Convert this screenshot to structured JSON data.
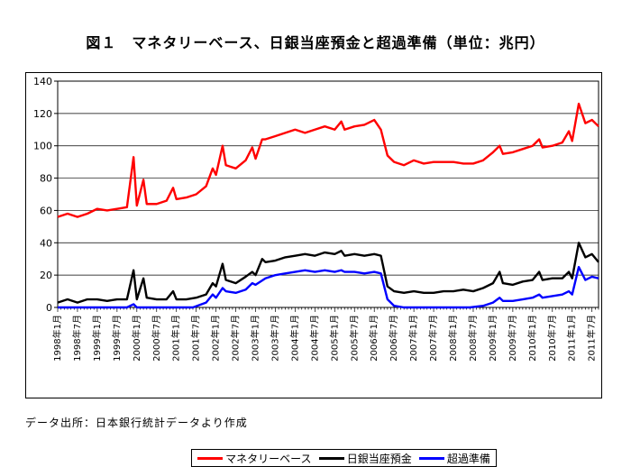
{
  "chart_data": {
    "type": "line",
    "title": "図１　マネタリーベース、日銀当座預金と超過準備（単位：兆円）",
    "ylim": [
      0,
      140
    ],
    "yticks": [
      0,
      20,
      40,
      60,
      80,
      100,
      120,
      140
    ],
    "xlim": [
      "1998-01",
      "2011-09"
    ],
    "xtick_labels": [
      "1998年1月",
      "1998年7月",
      "1999年1月",
      "1999年7月",
      "2000年1月",
      "2000年7月",
      "2001年1月",
      "2001年7月",
      "2002年1月",
      "2002年7月",
      "2003年1月",
      "2003年7月",
      "2004年1月",
      "2004年7月",
      "2005年1月",
      "2005年7月",
      "2006年1月",
      "2006年7月",
      "2007年1月",
      "2007年7月",
      "2008年1月",
      "2008年7月",
      "2009年1月",
      "2009年7月",
      "2010年1月",
      "2010年7月",
      "2011年1月",
      "2011年7月"
    ],
    "grid": "horizontal",
    "legend_position": "bottom",
    "series": [
      {
        "name": "マネタリーベース",
        "color": "#ff0000",
        "points": [
          [
            "1998-01",
            56
          ],
          [
            "1998-04",
            58
          ],
          [
            "1998-07",
            56
          ],
          [
            "1998-10",
            58
          ],
          [
            "1999-01",
            61
          ],
          [
            "1999-04",
            60
          ],
          [
            "1999-07",
            61
          ],
          [
            "1999-10",
            62
          ],
          [
            "1999-12",
            93
          ],
          [
            "2000-01",
            63
          ],
          [
            "2000-03",
            79
          ],
          [
            "2000-04",
            64
          ],
          [
            "2000-07",
            64
          ],
          [
            "2000-10",
            66
          ],
          [
            "2000-12",
            74
          ],
          [
            "2001-01",
            67
          ],
          [
            "2001-04",
            68
          ],
          [
            "2001-07",
            70
          ],
          [
            "2001-10",
            75
          ],
          [
            "2001-12",
            86
          ],
          [
            "2002-01",
            82
          ],
          [
            "2002-03",
            100
          ],
          [
            "2002-04",
            88
          ],
          [
            "2002-07",
            86
          ],
          [
            "2002-10",
            91
          ],
          [
            "2002-12",
            99
          ],
          [
            "2003-01",
            92
          ],
          [
            "2003-03",
            104
          ],
          [
            "2003-04",
            104
          ],
          [
            "2003-07",
            106
          ],
          [
            "2003-10",
            108
          ],
          [
            "2004-01",
            110
          ],
          [
            "2004-04",
            108
          ],
          [
            "2004-07",
            110
          ],
          [
            "2004-10",
            112
          ],
          [
            "2005-01",
            110
          ],
          [
            "2005-03",
            115
          ],
          [
            "2005-04",
            110
          ],
          [
            "2005-07",
            112
          ],
          [
            "2005-10",
            113
          ],
          [
            "2006-01",
            116
          ],
          [
            "2006-03",
            110
          ],
          [
            "2006-05",
            94
          ],
          [
            "2006-07",
            90
          ],
          [
            "2006-10",
            88
          ],
          [
            "2007-01",
            91
          ],
          [
            "2007-04",
            89
          ],
          [
            "2007-07",
            90
          ],
          [
            "2007-10",
            90
          ],
          [
            "2008-01",
            90
          ],
          [
            "2008-04",
            89
          ],
          [
            "2008-07",
            89
          ],
          [
            "2008-10",
            91
          ],
          [
            "2009-01",
            96
          ],
          [
            "2009-03",
            100
          ],
          [
            "2009-04",
            95
          ],
          [
            "2009-07",
            96
          ],
          [
            "2009-10",
            98
          ],
          [
            "2010-01",
            100
          ],
          [
            "2010-03",
            104
          ],
          [
            "2010-04",
            99
          ],
          [
            "2010-07",
            100
          ],
          [
            "2010-10",
            102
          ],
          [
            "2010-12",
            109
          ],
          [
            "2011-01",
            103
          ],
          [
            "2011-03",
            126
          ],
          [
            "2011-05",
            114
          ],
          [
            "2011-07",
            116
          ],
          [
            "2011-09",
            112
          ]
        ]
      },
      {
        "name": "日銀当座預金",
        "color": "#000000",
        "points": [
          [
            "1998-01",
            3
          ],
          [
            "1998-04",
            5
          ],
          [
            "1998-07",
            3
          ],
          [
            "1998-10",
            5
          ],
          [
            "1999-01",
            5
          ],
          [
            "1999-04",
            4
          ],
          [
            "1999-07",
            5
          ],
          [
            "1999-10",
            5
          ],
          [
            "1999-12",
            23
          ],
          [
            "2000-01",
            5
          ],
          [
            "2000-03",
            18
          ],
          [
            "2000-04",
            6
          ],
          [
            "2000-07",
            5
          ],
          [
            "2000-10",
            5
          ],
          [
            "2000-12",
            10
          ],
          [
            "2001-01",
            5
          ],
          [
            "2001-04",
            5
          ],
          [
            "2001-07",
            6
          ],
          [
            "2001-10",
            8
          ],
          [
            "2001-12",
            15
          ],
          [
            "2002-01",
            13
          ],
          [
            "2002-03",
            27
          ],
          [
            "2002-04",
            17
          ],
          [
            "2002-07",
            15
          ],
          [
            "2002-10",
            19
          ],
          [
            "2002-12",
            22
          ],
          [
            "2003-01",
            20
          ],
          [
            "2003-03",
            30
          ],
          [
            "2003-04",
            28
          ],
          [
            "2003-07",
            29
          ],
          [
            "2003-10",
            31
          ],
          [
            "2004-01",
            32
          ],
          [
            "2004-04",
            33
          ],
          [
            "2004-07",
            32
          ],
          [
            "2004-10",
            34
          ],
          [
            "2005-01",
            33
          ],
          [
            "2005-03",
            35
          ],
          [
            "2005-04",
            32
          ],
          [
            "2005-07",
            33
          ],
          [
            "2005-10",
            32
          ],
          [
            "2006-01",
            33
          ],
          [
            "2006-03",
            32
          ],
          [
            "2006-05",
            13
          ],
          [
            "2006-07",
            10
          ],
          [
            "2006-10",
            9
          ],
          [
            "2007-01",
            10
          ],
          [
            "2007-04",
            9
          ],
          [
            "2007-07",
            9
          ],
          [
            "2007-10",
            10
          ],
          [
            "2008-01",
            10
          ],
          [
            "2008-04",
            11
          ],
          [
            "2008-07",
            10
          ],
          [
            "2008-10",
            12
          ],
          [
            "2009-01",
            15
          ],
          [
            "2009-03",
            22
          ],
          [
            "2009-04",
            15
          ],
          [
            "2009-07",
            14
          ],
          [
            "2009-10",
            16
          ],
          [
            "2010-01",
            17
          ],
          [
            "2010-03",
            22
          ],
          [
            "2010-04",
            17
          ],
          [
            "2010-07",
            18
          ],
          [
            "2010-10",
            18
          ],
          [
            "2010-12",
            22
          ],
          [
            "2011-01",
            18
          ],
          [
            "2011-03",
            40
          ],
          [
            "2011-05",
            31
          ],
          [
            "2011-07",
            33
          ],
          [
            "2011-09",
            28
          ]
        ]
      },
      {
        "name": "超過準備",
        "color": "#0000ff",
        "points": [
          [
            "1998-01",
            0
          ],
          [
            "1999-10",
            0
          ],
          [
            "1999-12",
            2
          ],
          [
            "2000-01",
            0
          ],
          [
            "2001-06",
            0
          ],
          [
            "2001-10",
            3
          ],
          [
            "2001-12",
            8
          ],
          [
            "2002-01",
            6
          ],
          [
            "2002-03",
            12
          ],
          [
            "2002-04",
            10
          ],
          [
            "2002-07",
            9
          ],
          [
            "2002-10",
            11
          ],
          [
            "2002-12",
            15
          ],
          [
            "2003-01",
            14
          ],
          [
            "2003-04",
            18
          ],
          [
            "2003-07",
            20
          ],
          [
            "2003-10",
            21
          ],
          [
            "2004-01",
            22
          ],
          [
            "2004-04",
            23
          ],
          [
            "2004-07",
            22
          ],
          [
            "2004-10",
            23
          ],
          [
            "2005-01",
            22
          ],
          [
            "2005-03",
            23
          ],
          [
            "2005-04",
            22
          ],
          [
            "2005-07",
            22
          ],
          [
            "2005-10",
            21
          ],
          [
            "2006-01",
            22
          ],
          [
            "2006-03",
            21
          ],
          [
            "2006-05",
            5
          ],
          [
            "2006-07",
            1
          ],
          [
            "2006-10",
            0
          ],
          [
            "2008-06",
            0
          ],
          [
            "2008-10",
            1
          ],
          [
            "2009-01",
            3
          ],
          [
            "2009-03",
            6
          ],
          [
            "2009-04",
            4
          ],
          [
            "2009-07",
            4
          ],
          [
            "2009-10",
            5
          ],
          [
            "2010-01",
            6
          ],
          [
            "2010-03",
            8
          ],
          [
            "2010-04",
            6
          ],
          [
            "2010-07",
            7
          ],
          [
            "2010-10",
            8
          ],
          [
            "2010-12",
            10
          ],
          [
            "2011-01",
            8
          ],
          [
            "2011-03",
            25
          ],
          [
            "2011-05",
            17
          ],
          [
            "2011-07",
            19
          ],
          [
            "2011-09",
            18
          ]
        ]
      }
    ]
  },
  "source_note": "データ出所：日本銀行統計データより作成"
}
